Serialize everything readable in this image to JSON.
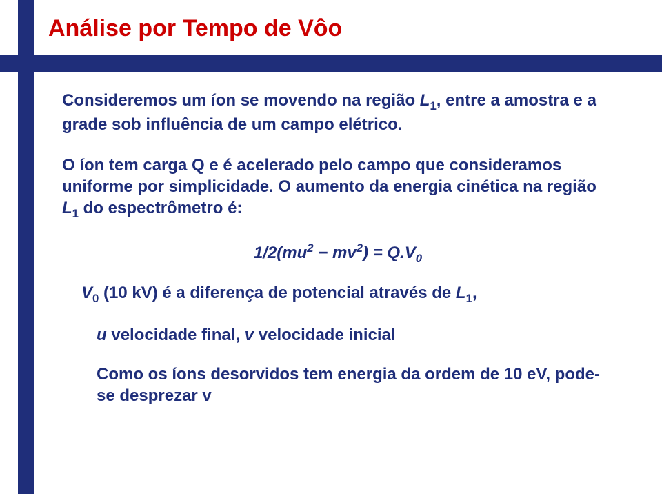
{
  "colors": {
    "title": "#cc0000",
    "bar": "#1f2e7a",
    "body_text": "#1f2e7a",
    "background": "#ffffff"
  },
  "title": "Análise por Tempo de Vôo",
  "para1_a": "Consideremos um íon se movendo na região ",
  "para1_L": "L",
  "para1_sub1": "1",
  "para1_b": ", entre a amostra e a  grade sob influência de um campo elétrico.",
  "para2_a": " O íon tem carga Q e é acelerado pelo campo que consideramos uniforme por simplicidade. O aumento da energia cinética na região  ",
  "para2_L": "L",
  "para2_sub1": "1",
  "para2_b": " do espectrômetro é:",
  "eq_a": "1/2(mu",
  "eq_sup2a": "2",
  "eq_minus": " − mv",
  "eq_sup2b": "2",
  "eq_b": ") = Q.V",
  "eq_sub0": "0",
  "v0line_a": "V",
  "v0line_sub0": "0",
  "v0line_b": " (10 kV) é a diferença de potencial através de ",
  "v0line_L": "L",
  "v0line_sub1": "1",
  "v0line_c": ",",
  "uvline_a": "u",
  "uvline_b": "  velocidade final,  ",
  "uvline_c": "v",
  "uvline_d": " velocidade  inicial",
  "lastline_a": " Como os íons desorvidos tem energia da ordem de 10 eV, pode-se desprezar v"
}
